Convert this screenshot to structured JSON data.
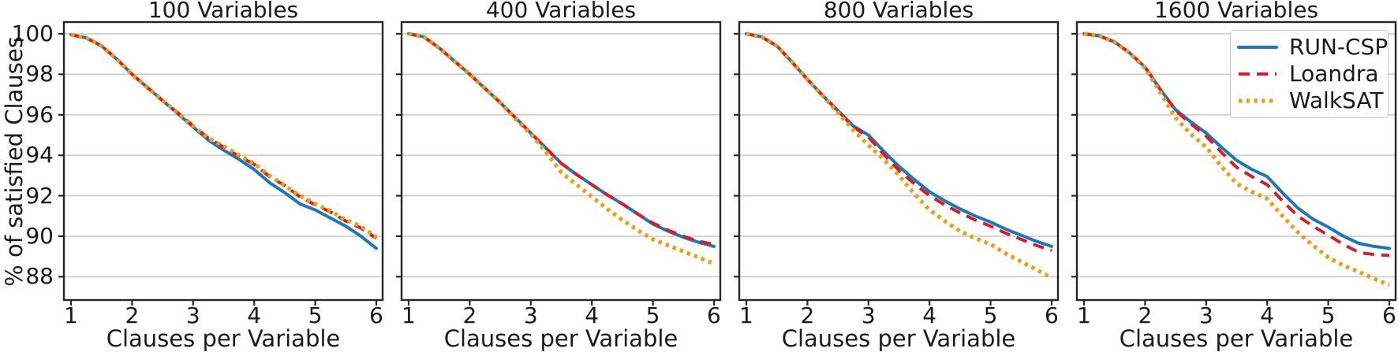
{
  "figure": {
    "ylabel": "% of satisfied Clauses",
    "xlabel": "Clauses per Variable",
    "xticks": [
      1,
      2,
      3,
      4,
      5,
      6
    ],
    "yticks": [
      88,
      90,
      92,
      94,
      96,
      98,
      100
    ],
    "xlim": [
      0.884,
      6.104
    ],
    "ylim": [
      86.85,
      100.58
    ],
    "grid": true,
    "grid_color": "#cccccc",
    "axis_color": "#262626",
    "legend_position": "upper right",
    "legend_subplot": "1600 Variables",
    "series_meta": [
      {
        "name": "RUN-CSP",
        "color": "#1f77b4",
        "style": "solid"
      },
      {
        "name": "Loandra",
        "color": "#d21f2f",
        "style": "dashed"
      },
      {
        "name": "WalkSAT",
        "color": "#e8a11e",
        "style": "dotted"
      }
    ]
  },
  "chart_data": [
    {
      "type": "line",
      "title": "100 Variables",
      "xlabel": "Clauses per Variable",
      "ylabel": "% of satisfied Clauses",
      "x": [
        1.0,
        1.25,
        1.5,
        1.75,
        2.0,
        2.25,
        2.5,
        2.75,
        3.0,
        3.25,
        3.5,
        3.75,
        4.0,
        4.25,
        4.5,
        4.75,
        5.0,
        5.25,
        5.5,
        5.75,
        6.0
      ],
      "series": [
        {
          "name": "RUN-CSP",
          "values": [
            99.95,
            99.8,
            99.4,
            98.75,
            98.0,
            97.35,
            96.7,
            96.05,
            95.4,
            94.75,
            94.25,
            93.8,
            93.3,
            92.65,
            92.15,
            91.6,
            91.3,
            90.9,
            90.5,
            90.0,
            89.4
          ]
        },
        {
          "name": "Loandra",
          "values": [
            99.95,
            99.8,
            99.4,
            98.75,
            98.0,
            97.35,
            96.7,
            96.1,
            95.45,
            94.85,
            94.4,
            93.95,
            93.55,
            92.95,
            92.5,
            91.95,
            91.55,
            91.2,
            90.75,
            90.4,
            89.9
          ]
        },
        {
          "name": "WalkSAT",
          "values": [
            99.95,
            99.8,
            99.4,
            98.75,
            98.0,
            97.35,
            96.7,
            96.1,
            95.45,
            94.85,
            94.45,
            94.0,
            93.6,
            93.0,
            92.5,
            92.0,
            91.6,
            91.25,
            90.8,
            90.5,
            89.95
          ]
        }
      ]
    },
    {
      "type": "line",
      "title": "400 Variables",
      "xlabel": "Clauses per Variable",
      "ylabel": "% of satisfied Clauses",
      "x": [
        1.0,
        1.25,
        1.5,
        1.75,
        2.0,
        2.25,
        2.5,
        2.75,
        3.0,
        3.25,
        3.5,
        3.75,
        4.0,
        4.25,
        4.5,
        4.75,
        5.0,
        5.25,
        5.5,
        5.75,
        6.0
      ],
      "series": [
        {
          "name": "RUN-CSP",
          "values": [
            100.0,
            99.85,
            99.3,
            98.65,
            98.0,
            97.3,
            96.6,
            95.85,
            95.1,
            94.35,
            93.6,
            93.05,
            92.55,
            92.05,
            91.6,
            91.1,
            90.6,
            90.25,
            89.95,
            89.7,
            89.5
          ]
        },
        {
          "name": "Loandra",
          "values": [
            100.0,
            99.85,
            99.3,
            98.65,
            98.0,
            97.3,
            96.6,
            95.85,
            95.1,
            94.35,
            93.6,
            93.05,
            92.55,
            92.05,
            91.6,
            91.1,
            90.65,
            90.3,
            90.0,
            89.75,
            89.6
          ]
        },
        {
          "name": "WalkSAT",
          "values": [
            100.0,
            99.85,
            99.3,
            98.65,
            98.0,
            97.3,
            96.6,
            95.8,
            95.05,
            94.15,
            93.15,
            92.55,
            91.95,
            91.35,
            90.8,
            90.3,
            89.85,
            89.55,
            89.25,
            88.95,
            88.65
          ]
        }
      ]
    },
    {
      "type": "line",
      "title": "800 Variables",
      "xlabel": "Clauses per Variable",
      "ylabel": "% of satisfied Clauses",
      "x": [
        1.0,
        1.25,
        1.5,
        1.75,
        2.0,
        2.25,
        2.5,
        2.75,
        3.0,
        3.25,
        3.5,
        3.75,
        4.0,
        4.25,
        4.5,
        4.75,
        5.0,
        5.25,
        5.5,
        5.75,
        6.0
      ],
      "series": [
        {
          "name": "RUN-CSP",
          "values": [
            100.0,
            99.85,
            99.4,
            98.6,
            97.75,
            96.95,
            96.2,
            95.45,
            95.0,
            94.2,
            93.45,
            92.8,
            92.2,
            91.75,
            91.35,
            91.0,
            90.7,
            90.35,
            90.05,
            89.75,
            89.5
          ]
        },
        {
          "name": "Loandra",
          "values": [
            100.0,
            99.85,
            99.4,
            98.6,
            97.75,
            96.95,
            96.2,
            95.4,
            94.9,
            94.05,
            93.25,
            92.6,
            92.0,
            91.55,
            91.15,
            90.8,
            90.5,
            90.15,
            89.85,
            89.55,
            89.3
          ]
        },
        {
          "name": "WalkSAT",
          "values": [
            100.0,
            99.85,
            99.4,
            98.6,
            97.75,
            96.95,
            96.1,
            95.25,
            94.5,
            93.8,
            93.0,
            92.1,
            91.3,
            90.75,
            90.25,
            89.9,
            89.6,
            89.15,
            88.75,
            88.35,
            87.95
          ]
        }
      ]
    },
    {
      "type": "line",
      "title": "1600 Variables",
      "xlabel": "Clauses per Variable",
      "ylabel": "% of satisfied Clauses",
      "x": [
        1.0,
        1.25,
        1.5,
        1.75,
        2.0,
        2.25,
        2.5,
        2.75,
        3.0,
        3.25,
        3.5,
        3.75,
        4.0,
        4.25,
        4.5,
        4.75,
        5.0,
        5.25,
        5.5,
        5.75,
        6.0
      ],
      "series": [
        {
          "name": "RUN-CSP",
          "values": [
            100.0,
            99.9,
            99.6,
            99.05,
            98.35,
            97.25,
            96.25,
            95.65,
            95.1,
            94.4,
            93.75,
            93.3,
            92.95,
            92.15,
            91.4,
            90.85,
            90.45,
            90.0,
            89.65,
            89.5,
            89.4
          ]
        },
        {
          "name": "Loandra",
          "values": [
            100.0,
            99.9,
            99.6,
            99.05,
            98.35,
            97.25,
            96.2,
            95.55,
            94.95,
            94.15,
            93.4,
            92.95,
            92.55,
            91.75,
            91.0,
            90.5,
            90.05,
            89.6,
            89.2,
            89.1,
            89.05
          ]
        },
        {
          "name": "WalkSAT",
          "values": [
            100.0,
            99.9,
            99.6,
            99.05,
            98.3,
            97.1,
            95.85,
            95.05,
            94.4,
            93.45,
            92.6,
            92.2,
            91.85,
            91.0,
            90.2,
            89.55,
            88.95,
            88.55,
            88.25,
            87.9,
            87.6
          ]
        }
      ]
    }
  ]
}
